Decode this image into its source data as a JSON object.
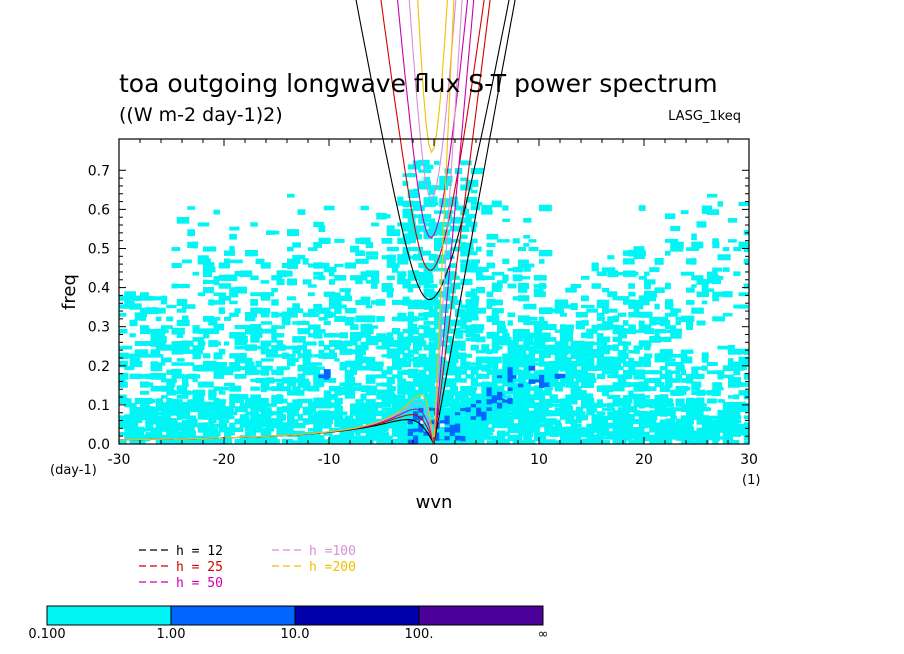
{
  "chart_data": {
    "type": "heatmap",
    "title": "toa outgoing longwave flux S-T power spectrum",
    "subtitle": "((W m-2 day-1)2)",
    "model_label": "LASG_1keq",
    "xlabel": "wvn",
    "ylabel": "freq",
    "x_unit_label": "(1)",
    "y_unit_label": "(day-1)",
    "xlim": [
      -30,
      30
    ],
    "ylim": [
      0,
      0.78
    ],
    "xticks": [
      "-30",
      "-20",
      "-10",
      "0",
      "10",
      "20",
      "30"
    ],
    "yticks": [
      "0.0",
      "0.1",
      "0.2",
      "0.3",
      "0.4",
      "0.5",
      "0.6",
      "0.7"
    ],
    "dispersion_curves": [
      {
        "label": "h = 12",
        "h": 12,
        "color": "#000000"
      },
      {
        "label": "h = 25",
        "h": 25,
        "color": "#d40000"
      },
      {
        "label": "h = 50",
        "h": 50,
        "color": "#cc00aa"
      },
      {
        "label": "h =100",
        "h": 100,
        "color": "#d98fd9"
      },
      {
        "label": "h =200",
        "h": 200,
        "color": "#f0c000"
      }
    ],
    "colorbar": {
      "levels": [
        "0.100",
        "1.00",
        "10.0",
        "100.",
        "∞"
      ],
      "colors": [
        "#00f5f5",
        "#0066ff",
        "#0000aa",
        "#4b0099"
      ]
    }
  }
}
